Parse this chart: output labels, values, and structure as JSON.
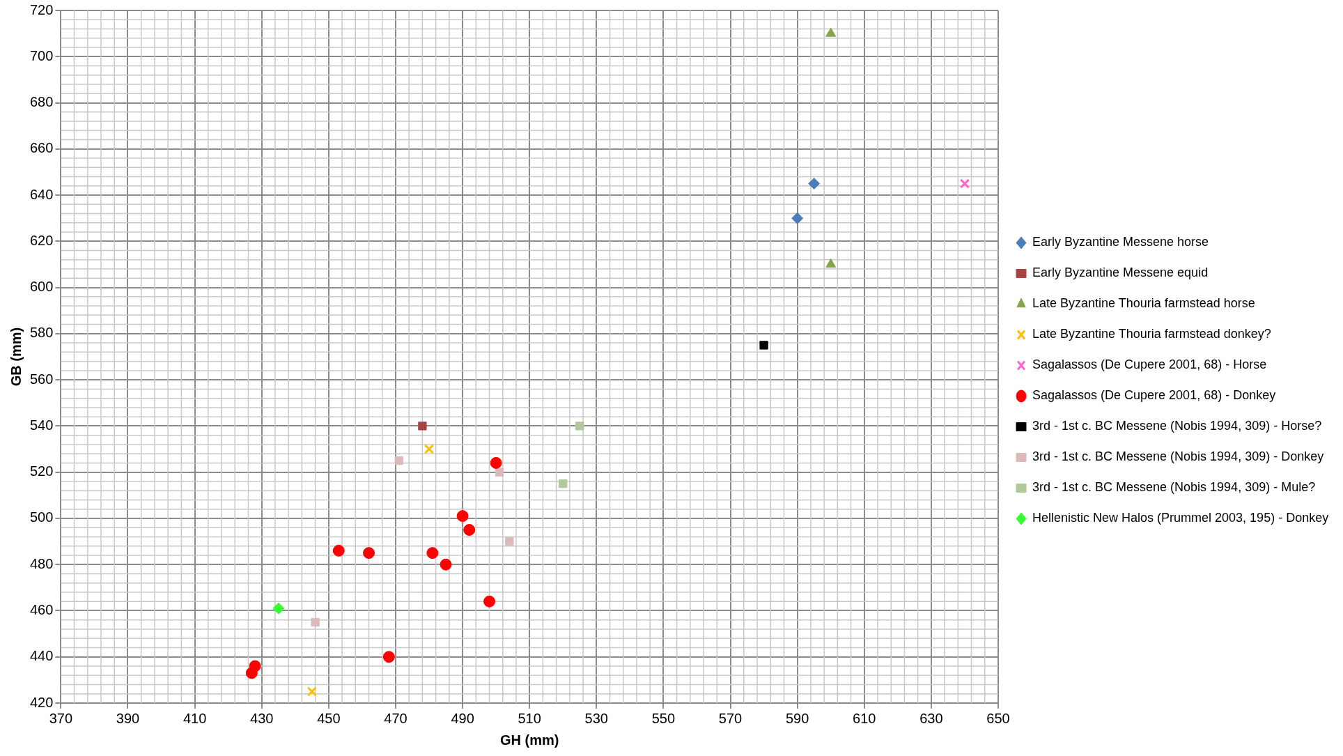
{
  "chart_data": {
    "type": "scatter",
    "xlabel": "GH (mm)",
    "ylabel": "GB (mm)",
    "xlim": [
      370,
      650
    ],
    "xticks": [
      370,
      390,
      410,
      430,
      450,
      470,
      490,
      510,
      530,
      550,
      570,
      590,
      610,
      630,
      650
    ],
    "ylim": [
      420,
      720
    ],
    "yticks": [
      420,
      440,
      460,
      480,
      500,
      520,
      540,
      560,
      580,
      600,
      620,
      640,
      660,
      680,
      700,
      720
    ],
    "grid": true,
    "legend": "right",
    "series": [
      {
        "name": "Early Byzantine Messene horse",
        "color": "#4a7ebb",
        "marker": "diamond",
        "x": [
          595,
          590
        ],
        "values": [
          645,
          630
        ]
      },
      {
        "name": "Early Byzantine Messene equid",
        "color": "#a94442",
        "marker": "square",
        "x": [
          478
        ],
        "values": [
          540
        ]
      },
      {
        "name": "Late Byzantine Thouria farmstead horse",
        "color": "#86a44a",
        "marker": "triangle",
        "x": [
          600,
          600
        ],
        "values": [
          710,
          610
        ]
      },
      {
        "name": "Late Byzantine Thouria farmstead donkey?",
        "color": "#ffc000",
        "marker": "cross",
        "x": [
          480,
          445
        ],
        "values": [
          530,
          425
        ]
      },
      {
        "name": "Sagalassos (De Cupere 2001, 68) - Horse",
        "color": "#ff66cc",
        "marker": "cross",
        "x": [
          640
        ],
        "values": [
          645
        ]
      },
      {
        "name": "Sagalassos (De Cupere 2001, 68) - Donkey",
        "color": "#ff0000",
        "marker": "circle",
        "x": [
          500,
          490,
          492,
          453,
          462,
          481,
          485,
          498,
          468,
          428,
          427
        ],
        "values": [
          524,
          501,
          495,
          486,
          485,
          485,
          480,
          464,
          440,
          436,
          433
        ]
      },
      {
        "name": "3rd - 1st c. BC Messene (Nobis 1994, 309) - Horse?",
        "color": "#000000",
        "marker": "square",
        "x": [
          580
        ],
        "values": [
          575
        ]
      },
      {
        "name": "3rd - 1st c. BC Messene (Nobis 1994, 309) - Donkey",
        "color": "#dbb9bd",
        "marker": "square",
        "x": [
          471,
          501,
          504,
          446
        ],
        "values": [
          525,
          520,
          490,
          455
        ]
      },
      {
        "name": "3rd - 1st c. BC Messene (Nobis 1994, 309) - Mule?",
        "color": "#b3c89a",
        "marker": "square",
        "x": [
          525,
          520
        ],
        "values": [
          540,
          515
        ]
      },
      {
        "name": "Hellenistic New Halos (Prummel 2003, 195) - Donkey",
        "color": "#33ff33",
        "marker": "diamond",
        "x": [
          435
        ],
        "values": [
          461
        ]
      }
    ]
  }
}
